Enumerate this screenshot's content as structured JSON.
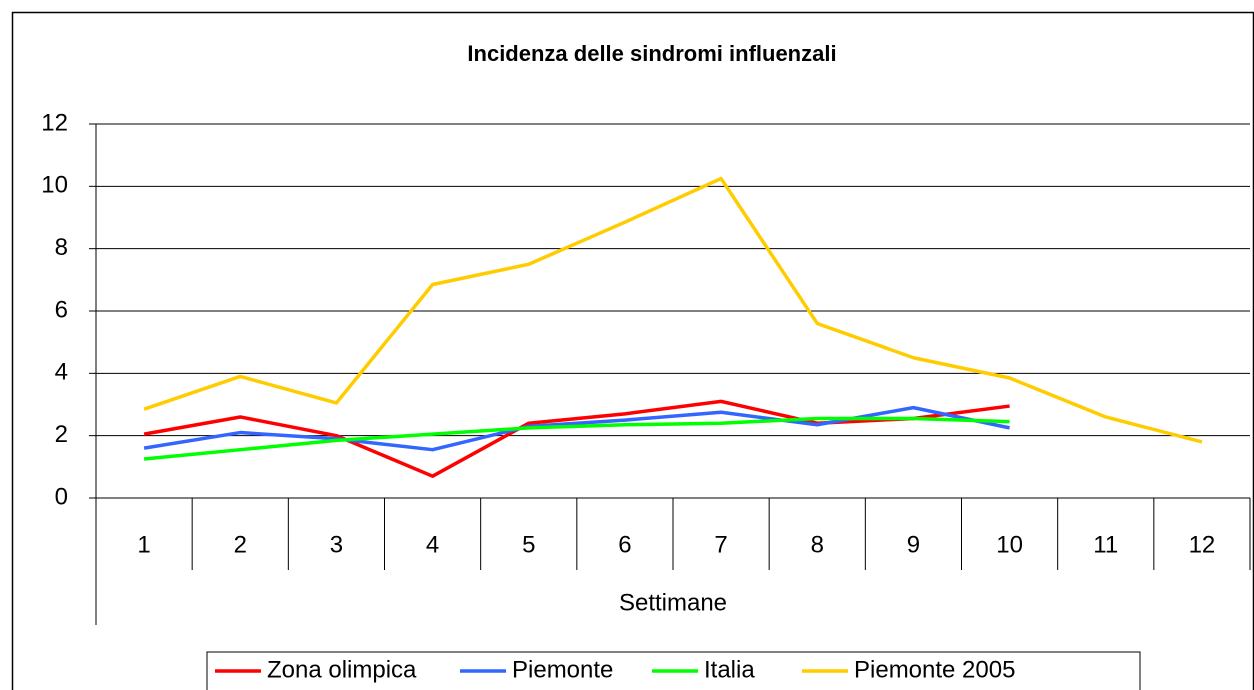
{
  "chart_data": {
    "type": "line",
    "title": "Incidenza delle sindromi influenzali",
    "x_label": "Settimane",
    "categories": [
      "1",
      "2",
      "3",
      "4",
      "5",
      "6",
      "7",
      "8",
      "9",
      "10",
      "11",
      "12"
    ],
    "series": [
      {
        "name": "Zona olimpica",
        "color": "#ff0000",
        "values": [
          2.05,
          2.6,
          2.0,
          0.7,
          2.4,
          2.7,
          3.1,
          2.4,
          2.55,
          2.95,
          null,
          null
        ]
      },
      {
        "name": "Piemonte",
        "color": "#3366ff",
        "values": [
          1.6,
          2.1,
          1.9,
          1.55,
          2.3,
          2.5,
          2.75,
          2.35,
          2.9,
          2.25,
          null,
          null
        ]
      },
      {
        "name": "Italia",
        "color": "#00ff00",
        "values": [
          1.25,
          1.55,
          1.85,
          2.05,
          2.25,
          2.35,
          2.4,
          2.55,
          2.55,
          2.45,
          null,
          null
        ]
      },
      {
        "name": "Piemonte 2005",
        "color": "#ffcc00",
        "values": [
          2.85,
          3.9,
          3.05,
          6.85,
          7.5,
          8.85,
          10.25,
          5.6,
          4.5,
          3.85,
          2.6,
          1.8
        ]
      }
    ],
    "ylim": [
      0,
      12
    ],
    "yticks": [
      0,
      2,
      4,
      6,
      8,
      10,
      12
    ],
    "grid": true,
    "legend": "bottom"
  }
}
